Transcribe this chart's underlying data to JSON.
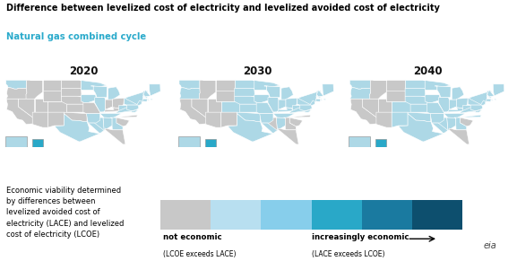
{
  "title": "Difference between levelized cost of electricity and levelized avoided cost of electricity",
  "subtitle": "Natural gas combined cycle",
  "subtitle_color": "#2aaacb",
  "title_color": "#000000",
  "years": [
    "2020",
    "2030",
    "2040"
  ],
  "background_color": "#ffffff",
  "legend_text_lines": [
    "Economic viability determined",
    "by differences between",
    "levelized avoided cost of",
    "electricity (LACE) and levelized",
    "cost of electricity (LCOE)"
  ],
  "legend_not_economic_label": "not economic",
  "legend_not_economic_sub": "(LCOE exceeds LACE)",
  "legend_increasingly_label": "increasingly economic",
  "legend_increasingly_sub": "(LACE exceeds LCOE)",
  "bar_colors": [
    "#c8c8c8",
    "#b8dff0",
    "#87ceeb",
    "#29a8c8",
    "#1a7aa0",
    "#0d4f6e"
  ],
  "c0": "#c8c8c8",
  "c1": "#add8e6",
  "c2": "#29a8c8",
  "state_colors_2020": {
    "AL": "#add8e6",
    "AK": "#add8e6",
    "AZ": "#c8c8c8",
    "AR": "#add8e6",
    "CA": "#c8c8c8",
    "CO": "#c8c8c8",
    "CT": "#add8e6",
    "DE": "#add8e6",
    "FL": "#c8c8c8",
    "GA": "#add8e6",
    "HI": "#29a8c8",
    "ID": "#c8c8c8",
    "IL": "#add8e6",
    "IN": "#c8c8c8",
    "IA": "#add8e6",
    "KS": "#c8c8c8",
    "KY": "#c8c8c8",
    "LA": "#add8e6",
    "ME": "#add8e6",
    "MD": "#add8e6",
    "MA": "#add8e6",
    "MI": "#add8e6",
    "MN": "#add8e6",
    "MS": "#add8e6",
    "MO": "#c8c8c8",
    "MT": "#c8c8c8",
    "NE": "#c8c8c8",
    "NV": "#c8c8c8",
    "NH": "#add8e6",
    "NJ": "#add8e6",
    "NM": "#c8c8c8",
    "NY": "#add8e6",
    "NC": "#c8c8c8",
    "ND": "#c8c8c8",
    "OH": "#c8c8c8",
    "OK": "#c8c8c8",
    "OR": "#c8c8c8",
    "PA": "#add8e6",
    "RI": "#add8e6",
    "SC": "#c8c8c8",
    "SD": "#c8c8c8",
    "TN": "#add8e6",
    "TX": "#add8e6",
    "UT": "#c8c8c8",
    "VT": "#add8e6",
    "VA": "#add8e6",
    "WA": "#add8e6",
    "WV": "#add8e6",
    "WI": "#add8e6",
    "WY": "#c8c8c8"
  },
  "state_colors_2030": {
    "AL": "#add8e6",
    "AK": "#add8e6",
    "AZ": "#c8c8c8",
    "AR": "#add8e6",
    "CA": "#c8c8c8",
    "CO": "#add8e6",
    "CT": "#add8e6",
    "DE": "#add8e6",
    "FL": "#c8c8c8",
    "GA": "#c8c8c8",
    "HI": "#29a8c8",
    "ID": "#c8c8c8",
    "IL": "#add8e6",
    "IN": "#add8e6",
    "IA": "#add8e6",
    "KS": "#add8e6",
    "KY": "#add8e6",
    "LA": "#add8e6",
    "ME": "#add8e6",
    "MD": "#add8e6",
    "MA": "#add8e6",
    "MI": "#add8e6",
    "MN": "#add8e6",
    "MS": "#c8c8c8",
    "MO": "#add8e6",
    "MT": "#c8c8c8",
    "NE": "#add8e6",
    "NV": "#c8c8c8",
    "NH": "#add8e6",
    "NJ": "#add8e6",
    "NM": "#c8c8c8",
    "NY": "#add8e6",
    "NC": "#c8c8c8",
    "ND": "#add8e6",
    "OH": "#add8e6",
    "OK": "#add8e6",
    "OR": "#add8e6",
    "PA": "#add8e6",
    "RI": "#add8e6",
    "SC": "#c8c8c8",
    "SD": "#add8e6",
    "TN": "#add8e6",
    "TX": "#add8e6",
    "UT": "#c8c8c8",
    "VT": "#add8e6",
    "VA": "#add8e6",
    "WA": "#add8e6",
    "WV": "#add8e6",
    "WI": "#add8e6",
    "WY": "#c8c8c8"
  },
  "state_colors_2040": {
    "AL": "#add8e6",
    "AK": "#add8e6",
    "AZ": "#c8c8c8",
    "AR": "#add8e6",
    "CA": "#c8c8c8",
    "CO": "#add8e6",
    "CT": "#add8e6",
    "DE": "#add8e6",
    "FL": "#c8c8c8",
    "GA": "#add8e6",
    "HI": "#29a8c8",
    "ID": "#c8c8c8",
    "IL": "#add8e6",
    "IN": "#add8e6",
    "IA": "#add8e6",
    "KS": "#add8e6",
    "KY": "#add8e6",
    "LA": "#add8e6",
    "ME": "#add8e6",
    "MD": "#add8e6",
    "MA": "#add8e6",
    "MI": "#add8e6",
    "MN": "#add8e6",
    "MS": "#add8e6",
    "MO": "#add8e6",
    "MT": "#c8c8c8",
    "NE": "#add8e6",
    "NV": "#c8c8c8",
    "NH": "#add8e6",
    "NJ": "#add8e6",
    "NM": "#add8e6",
    "NY": "#add8e6",
    "NC": "#add8e6",
    "ND": "#add8e6",
    "OH": "#add8e6",
    "OK": "#add8e6",
    "OR": "#add8e6",
    "PA": "#add8e6",
    "RI": "#add8e6",
    "SC": "#c8c8c8",
    "SD": "#add8e6",
    "TN": "#add8e6",
    "TX": "#add8e6",
    "UT": "#c8c8c8",
    "VT": "#add8e6",
    "VA": "#add8e6",
    "WA": "#add8e6",
    "WV": "#add8e6",
    "WI": "#add8e6",
    "WY": "#c8c8c8"
  }
}
